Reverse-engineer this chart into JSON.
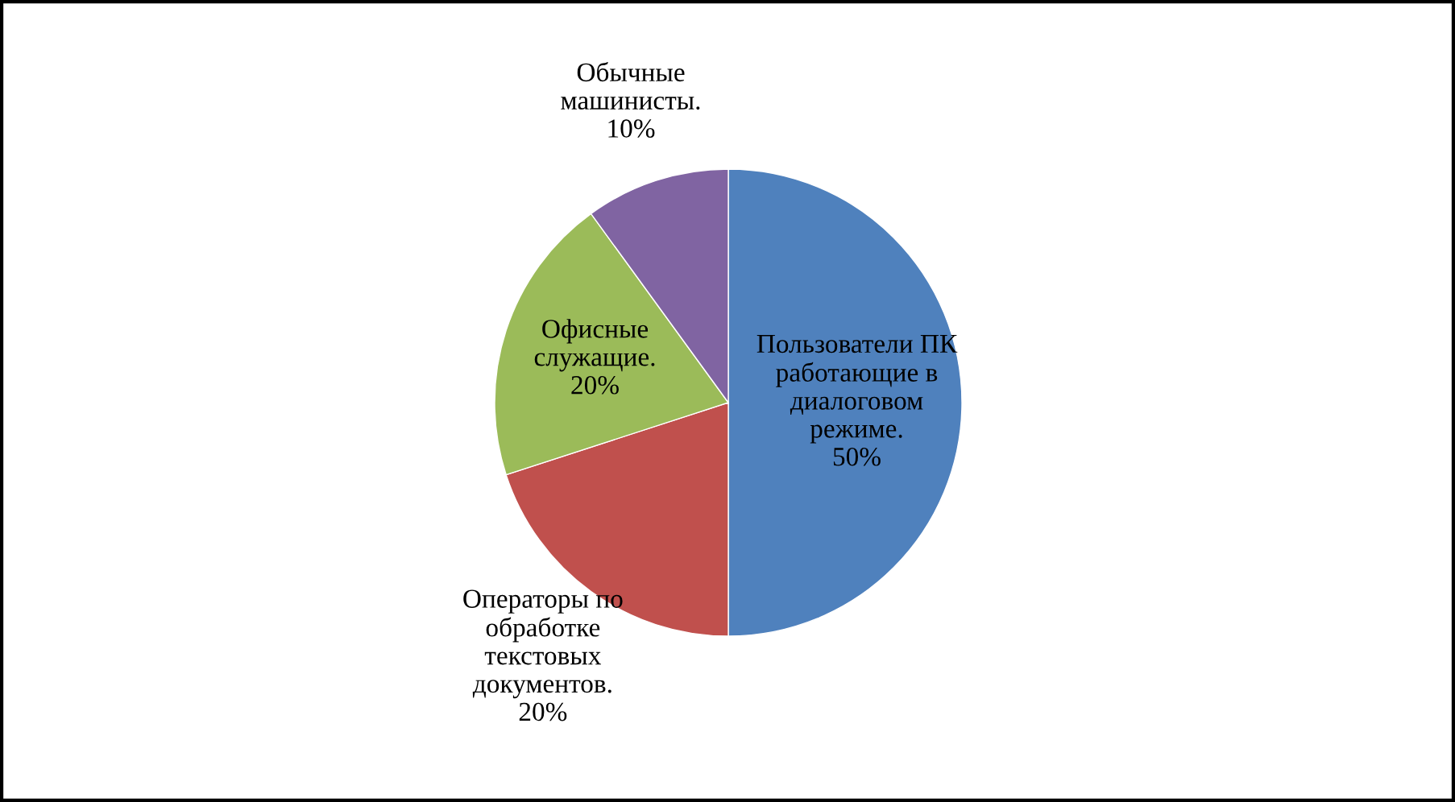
{
  "chart_data": {
    "type": "pie",
    "categories": [
      "Пользователи ПК работающие в диалоговом режиме.",
      "Операторы по обработке текстовых документов.",
      "Офисные служащие.",
      "Обычные машинисты."
    ],
    "values": [
      50,
      20,
      20,
      10
    ],
    "value_labels": [
      "50%",
      "20%",
      "20%",
      "10%"
    ],
    "colors": [
      "#4f81bd",
      "#c0504d",
      "#9bbb59",
      "#8064a2"
    ]
  }
}
